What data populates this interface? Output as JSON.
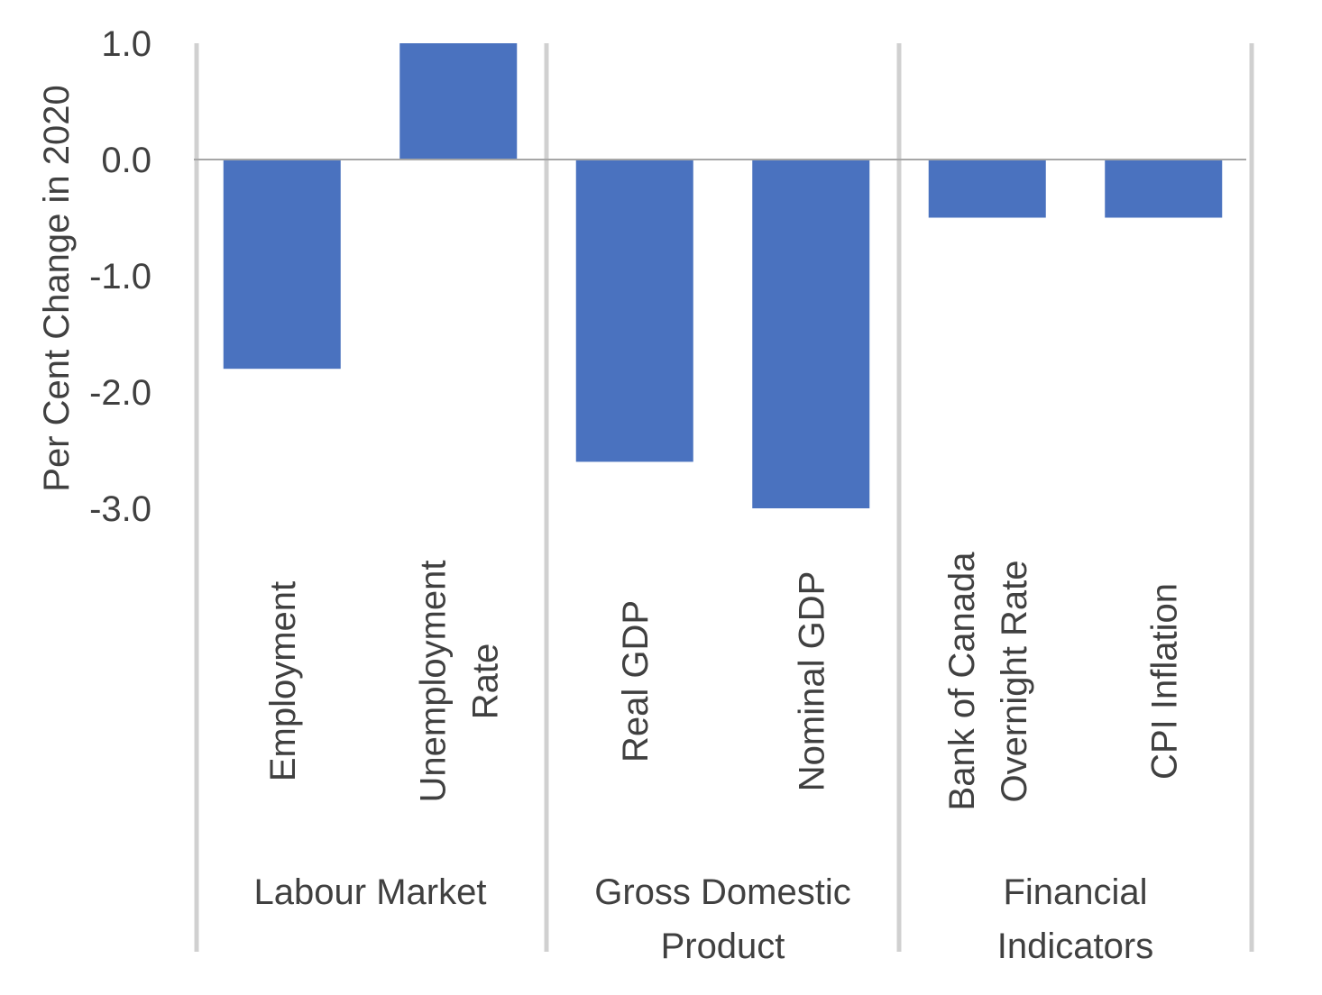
{
  "chart_data": {
    "type": "bar",
    "ylabel": "Per Cent Change in 2020",
    "ylim": [
      -3.0,
      1.0
    ],
    "yticks": [
      "1.0",
      "0.0",
      "-1.0",
      "-2.0",
      "-3.0"
    ],
    "grid": false,
    "categories": [
      [
        "Employment"
      ],
      [
        "Unemployment",
        "Rate"
      ],
      [
        "Real GDP"
      ],
      [
        "Nominal GDP"
      ],
      [
        "Bank of Canada",
        "Overnight Rate"
      ],
      [
        "CPI Inflation"
      ]
    ],
    "values": [
      -1.8,
      1.0,
      -2.6,
      -3.0,
      -0.5,
      -0.5
    ],
    "groups": [
      {
        "label": [
          "Labour Market"
        ],
        "span": [
          0,
          1
        ]
      },
      {
        "label": [
          "Gross Domestic",
          "Product"
        ],
        "span": [
          2,
          3
        ]
      },
      {
        "label": [
          "Financial",
          "Indicators"
        ],
        "span": [
          4,
          5
        ]
      }
    ],
    "bar_color": "#4a72bf"
  }
}
